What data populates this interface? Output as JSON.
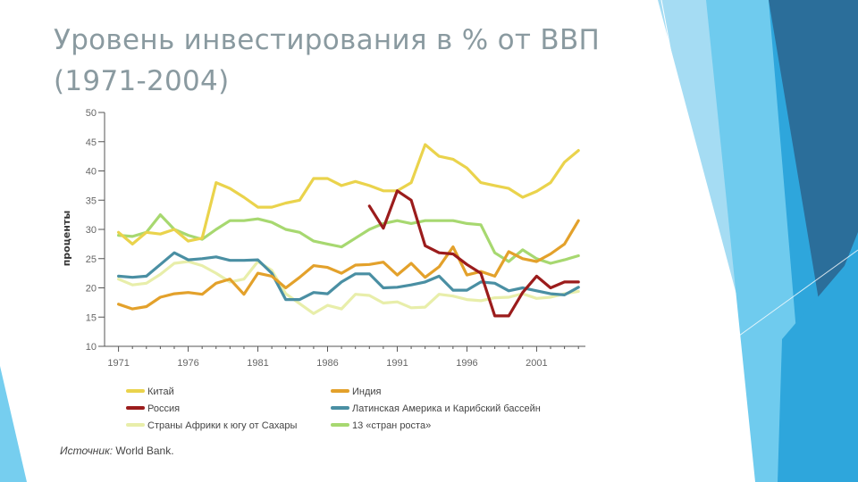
{
  "slide": {
    "title_line1": "Уровень инвестирования в % от ВВП",
    "title_line2": "(1971-2004)",
    "source_prefix": "Источник:",
    "source_text": " World Bank."
  },
  "colors": {
    "decor_light": "#6fcbee",
    "decor_mid": "#2ea6dc",
    "decor_dark": "#2b6e9a",
    "axis": "#555555"
  },
  "chart_data": {
    "type": "line",
    "ylabel": "проценты",
    "xlabel": "",
    "ylim": [
      10,
      50
    ],
    "xlim": [
      1970,
      2004.5
    ],
    "yticks": [
      10,
      15,
      20,
      25,
      30,
      35,
      40,
      45,
      50
    ],
    "ytick_labels": [
      "10",
      "15",
      "20",
      "25",
      "30",
      "35",
      "40",
      "45",
      "50"
    ],
    "xticks": [
      1971,
      1976,
      1981,
      1986,
      1991,
      1996,
      2001
    ],
    "xtick_labels": [
      "1971",
      "1976",
      "1981",
      "1986",
      "1991",
      "1996",
      "2001"
    ],
    "legend_placement": "bottom",
    "series": [
      {
        "name": "Китай",
        "color": "#ead34c",
        "x": [
          1971,
          1972,
          1973,
          1974,
          1975,
          1976,
          1977,
          1978,
          1979,
          1980,
          1981,
          1982,
          1983,
          1984,
          1985,
          1986,
          1987,
          1988,
          1989,
          1990,
          1991,
          1992,
          1993,
          1994,
          1995,
          1996,
          1997,
          1998,
          1999,
          2000,
          2001,
          2002,
          2003,
          2004
        ],
        "values": [
          29.5,
          27.5,
          29.5,
          29.2,
          30,
          28,
          28.5,
          38,
          37,
          35.5,
          33.8,
          33.8,
          34.5,
          35,
          38.7,
          38.7,
          37.5,
          38.2,
          37.5,
          36.6,
          36.6,
          38,
          44.5,
          42.5,
          42,
          40.5,
          38,
          37.5,
          37,
          35.5,
          36.5,
          38,
          41.5,
          43.5
        ]
      },
      {
        "name": "Индия",
        "color": "#e3a12b",
        "x": [
          1971,
          1972,
          1973,
          1974,
          1975,
          1976,
          1977,
          1978,
          1979,
          1980,
          1981,
          1982,
          1983,
          1984,
          1985,
          1986,
          1987,
          1988,
          1989,
          1990,
          1991,
          1992,
          1993,
          1994,
          1995,
          1996,
          1997,
          1998,
          1999,
          2000,
          2001,
          2002,
          2003,
          2004
        ],
        "values": [
          17.2,
          16.4,
          16.8,
          18.4,
          19,
          19.2,
          18.9,
          20.8,
          21.5,
          18.9,
          22.5,
          22,
          20,
          21.8,
          23.8,
          23.5,
          22.5,
          23.9,
          24,
          24.4,
          22.2,
          24.2,
          21.8,
          23.6,
          27,
          22.2,
          22.8,
          22,
          26.2,
          25,
          24.5,
          25.8,
          27.5,
          31.5
        ]
      },
      {
        "name": "Россия",
        "color": "#9b1c1c",
        "x": [
          1989,
          1990,
          1991,
          1992,
          1993,
          1994,
          1995,
          1996,
          1997,
          1998,
          1999,
          2000,
          2001,
          2002,
          2003,
          2004
        ],
        "values": [
          34,
          30.2,
          36.6,
          35,
          27.2,
          26,
          25.8,
          24,
          22.5,
          15.2,
          15.2,
          19.2,
          22,
          20,
          21,
          21
        ]
      },
      {
        "name": "Латинская Америка и Карибский бассейн",
        "color": "#4a8fa3",
        "x": [
          1971,
          1972,
          1973,
          1974,
          1975,
          1976,
          1977,
          1978,
          1979,
          1980,
          1981,
          1982,
          1983,
          1984,
          1985,
          1986,
          1987,
          1988,
          1989,
          1990,
          1991,
          1992,
          1993,
          1994,
          1995,
          1996,
          1997,
          1998,
          1999,
          2000,
          2001,
          2002,
          2003,
          2004
        ],
        "values": [
          22,
          21.8,
          22,
          24,
          26,
          24.8,
          25,
          25.3,
          24.7,
          24.7,
          24.8,
          22.5,
          18,
          18,
          19.2,
          19,
          21,
          22.4,
          22.4,
          20,
          20.1,
          20.5,
          21,
          22,
          19.6,
          19.6,
          21,
          20.8,
          19.5,
          20,
          19.5,
          19,
          18.8,
          20.1
        ]
      },
      {
        "name": "Страны Африки к югу от Сахары",
        "color": "#e8eeaa",
        "x": [
          1971,
          1972,
          1973,
          1974,
          1975,
          1976,
          1977,
          1978,
          1979,
          1980,
          1981,
          1982,
          1983,
          1984,
          1985,
          1986,
          1987,
          1988,
          1989,
          1990,
          1991,
          1992,
          1993,
          1994,
          1995,
          1996,
          1997,
          1998,
          1999,
          2000,
          2001,
          2002,
          2003,
          2004
        ],
        "values": [
          21.5,
          20.5,
          20.8,
          22.3,
          24.2,
          24.5,
          23.8,
          22.5,
          21,
          21.5,
          24.5,
          23,
          19,
          17.3,
          15.6,
          17,
          16.4,
          18.9,
          18.7,
          17.4,
          17.6,
          16.6,
          16.7,
          18.9,
          18.6,
          18,
          17.8,
          18.3,
          18.4,
          19,
          18.2,
          18.4,
          19,
          19.4
        ]
      },
      {
        "name": "13 «стран роста»",
        "color": "#a7d870",
        "x": [
          1971,
          1972,
          1973,
          1974,
          1975,
          1976,
          1977,
          1978,
          1979,
          1980,
          1981,
          1982,
          1983,
          1984,
          1985,
          1986,
          1987,
          1988,
          1989,
          1990,
          1991,
          1992,
          1993,
          1994,
          1995,
          1996,
          1997,
          1998,
          1999,
          2000,
          2001,
          2002,
          2003,
          2004
        ],
        "values": [
          29,
          28.8,
          29.5,
          32.5,
          30,
          29,
          28.3,
          30,
          31.5,
          31.5,
          31.8,
          31.2,
          30,
          29.5,
          28,
          27.5,
          27,
          28.5,
          30,
          31,
          31.5,
          31,
          31.5,
          31.5,
          31.5,
          31,
          30.8,
          26,
          24.5,
          26.5,
          25,
          24.2,
          24.8,
          25.5
        ]
      }
    ]
  }
}
